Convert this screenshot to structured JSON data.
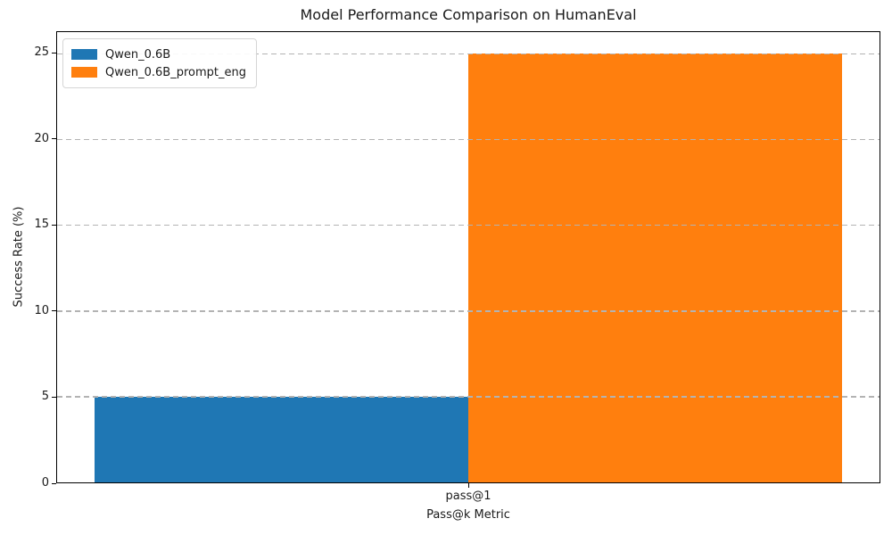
{
  "chart_data": {
    "type": "bar",
    "title": "Model Performance Comparison on HumanEval",
    "xlabel": "Pass@k Metric",
    "ylabel": "Success Rate (%)",
    "categories": [
      "pass@1"
    ],
    "series": [
      {
        "name": "Qwen_0.6B",
        "color": "#1f77b4",
        "values": [
          5
        ]
      },
      {
        "name": "Qwen_0.6B_prompt_eng",
        "color": "#ff7f0e",
        "values": [
          25
        ]
      }
    ],
    "ylim": [
      0,
      26.25
    ],
    "yticks": [
      0,
      5,
      10,
      15,
      20,
      25
    ],
    "grid": "y-dashed-over-bars",
    "gridline_color": "#b3b3b3",
    "legend_position": "upper-left",
    "background_color": "#ffffff",
    "spine_color": "#000000"
  }
}
